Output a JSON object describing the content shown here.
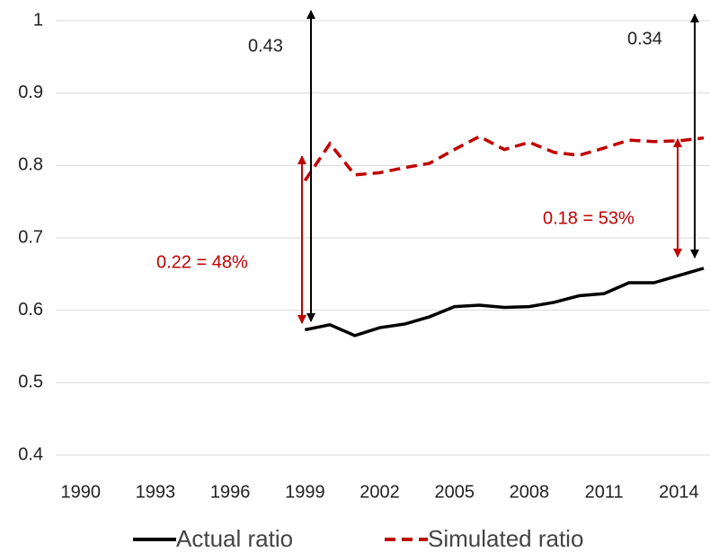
{
  "chart_data": {
    "type": "line",
    "x": [
      1999,
      2000,
      2001,
      2002,
      2003,
      2004,
      2005,
      2006,
      2007,
      2008,
      2009,
      2010,
      2011,
      2012,
      2013,
      2014,
      2015
    ],
    "series": [
      {
        "name": "Actual ratio",
        "color": "#000000",
        "dash": false,
        "values": [
          0.573,
          0.58,
          0.565,
          0.576,
          0.581,
          0.591,
          0.605,
          0.607,
          0.604,
          0.605,
          0.611,
          0.62,
          0.623,
          0.638,
          0.638,
          0.648,
          0.658
        ]
      },
      {
        "name": "Simulated ratio",
        "color": "#c00000",
        "dash": true,
        "values": [
          0.779,
          0.83,
          0.787,
          0.79,
          0.797,
          0.803,
          0.822,
          0.84,
          0.822,
          0.832,
          0.818,
          0.814,
          0.824,
          0.835,
          0.833,
          0.834,
          0.838
        ]
      }
    ],
    "xlim": [
      1989,
      2015.25
    ],
    "xticks": [
      1990,
      1993,
      1996,
      1999,
      2002,
      2005,
      2008,
      2011,
      2014
    ],
    "ylim": [
      0.4,
      1
    ],
    "yticks": [
      0.4,
      0.5,
      0.6,
      0.7,
      0.8,
      0.9,
      1
    ],
    "grid": true,
    "annotations": [
      "0.43",
      "0.22 = 48%",
      "0.34",
      "0.18 = 53%"
    ]
  }
}
